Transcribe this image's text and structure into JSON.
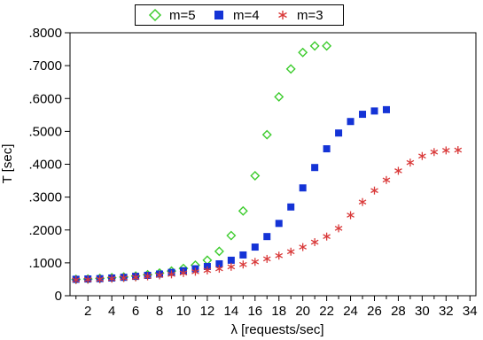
{
  "chart_data": {
    "type": "scatter",
    "xlabel": "λ  [requests/sec]",
    "ylabel": "T [sec]",
    "xlim": [
      0.5,
      34.5
    ],
    "ylim": [
      0,
      0.8
    ],
    "x_ticks": [
      2,
      4,
      6,
      8,
      10,
      12,
      14,
      16,
      18,
      20,
      22,
      24,
      26,
      28,
      30,
      32,
      34
    ],
    "y_ticks": [
      {
        "value": 0.0,
        "label": "0"
      },
      {
        "value": 0.1,
        "label": ".1000"
      },
      {
        "value": 0.2,
        "label": ".2000"
      },
      {
        "value": 0.3,
        "label": ".3000"
      },
      {
        "value": 0.4,
        "label": ".4000"
      },
      {
        "value": 0.5,
        "label": ".5000"
      },
      {
        "value": 0.6,
        "label": ".6000"
      },
      {
        "value": 0.7,
        "label": ".7000"
      },
      {
        "value": 0.8,
        "label": ".8000"
      }
    ],
    "grid": false,
    "legend_position": "top-center",
    "series": [
      {
        "name": "m=5",
        "marker": "diamond",
        "color": "#3dcc2e",
        "x": [
          1,
          2,
          3,
          4,
          5,
          6,
          7,
          8,
          9,
          10,
          11,
          12,
          13,
          14,
          15,
          16,
          17,
          18,
          19,
          20,
          21,
          22
        ],
        "y": [
          0.05,
          0.051,
          0.053,
          0.055,
          0.057,
          0.06,
          0.064,
          0.069,
          0.075,
          0.083,
          0.093,
          0.108,
          0.135,
          0.183,
          0.258,
          0.365,
          0.49,
          0.605,
          0.69,
          0.74,
          0.76,
          0.76
        ]
      },
      {
        "name": "m=4",
        "marker": "square",
        "color": "#1433d6",
        "x": [
          1,
          2,
          3,
          4,
          5,
          6,
          7,
          8,
          9,
          10,
          11,
          12,
          13,
          14,
          15,
          16,
          17,
          18,
          19,
          20,
          21,
          22,
          23,
          24,
          25,
          26,
          27
        ],
        "y": [
          0.05,
          0.051,
          0.052,
          0.054,
          0.056,
          0.059,
          0.062,
          0.066,
          0.071,
          0.076,
          0.082,
          0.089,
          0.097,
          0.108,
          0.124,
          0.148,
          0.18,
          0.22,
          0.27,
          0.328,
          0.39,
          0.447,
          0.495,
          0.53,
          0.552,
          0.562,
          0.566
        ]
      },
      {
        "name": "m=3",
        "marker": "star",
        "color": "#d93a3a",
        "x": [
          1,
          2,
          3,
          4,
          5,
          6,
          7,
          8,
          9,
          10,
          11,
          12,
          13,
          14,
          15,
          16,
          17,
          18,
          19,
          20,
          21,
          22,
          23,
          24,
          25,
          26,
          27,
          28,
          29,
          30,
          31,
          32,
          33
        ],
        "y": [
          0.048,
          0.049,
          0.05,
          0.052,
          0.054,
          0.056,
          0.059,
          0.062,
          0.065,
          0.069,
          0.073,
          0.077,
          0.082,
          0.088,
          0.095,
          0.103,
          0.112,
          0.122,
          0.134,
          0.148,
          0.163,
          0.18,
          0.205,
          0.245,
          0.285,
          0.32,
          0.352,
          0.38,
          0.405,
          0.425,
          0.437,
          0.442,
          0.443
        ]
      }
    ]
  }
}
